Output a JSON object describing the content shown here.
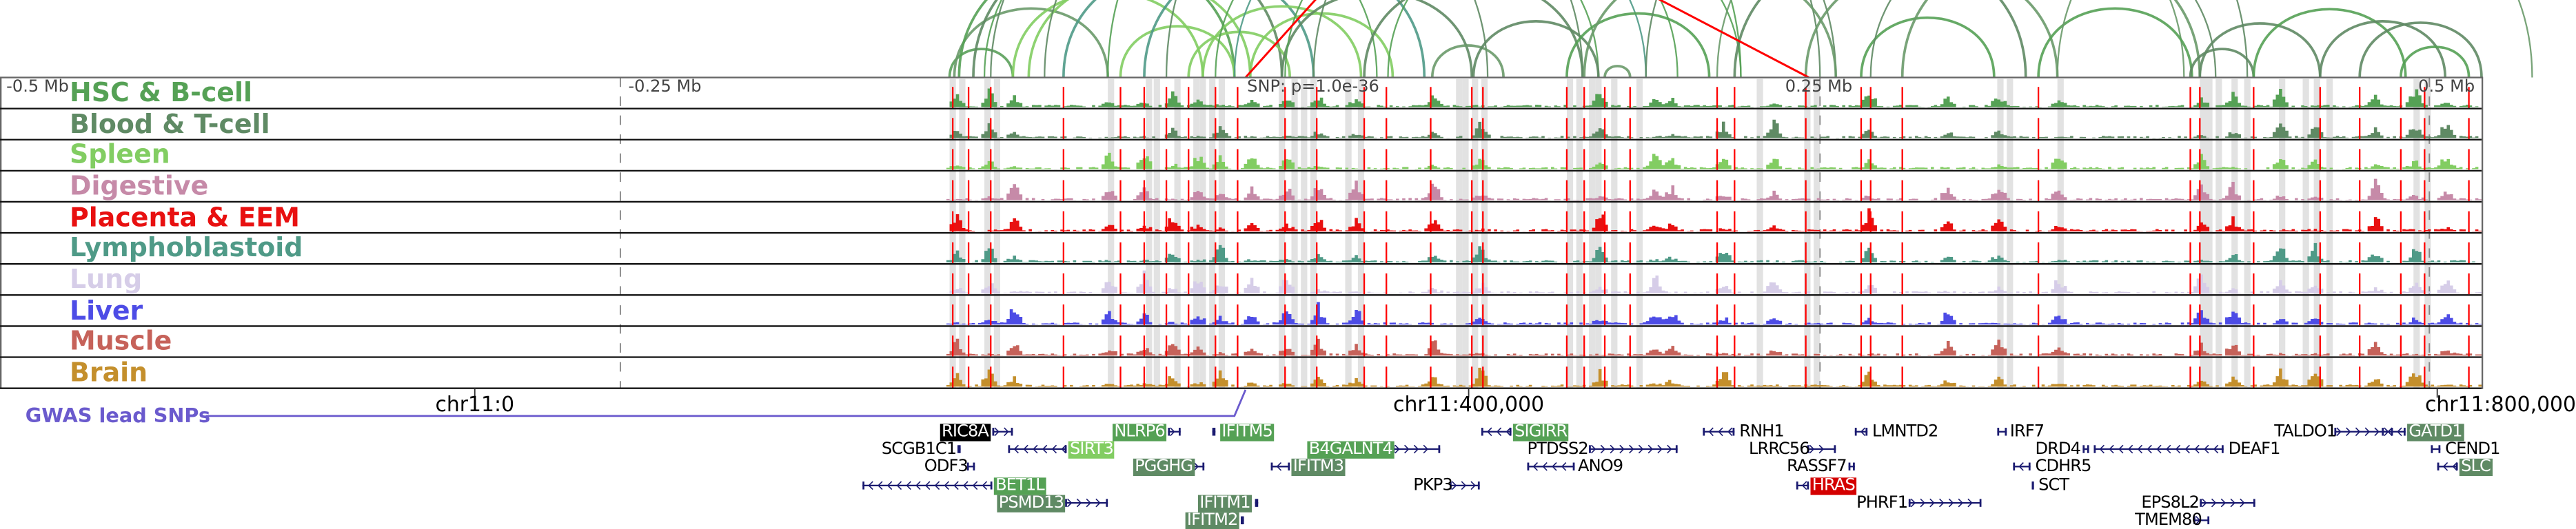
{
  "ruler": {
    "left": "-0.5 Mb",
    "left_mid": "-0.25 Mb",
    "right_mid": "0.25 Mb",
    "right": "0.5 Mb",
    "snp": "SNP: p=1.0e-36"
  },
  "tracks": [
    {
      "label": "HSC & B-cell",
      "color": "#55a155"
    },
    {
      "label": "Blood & T-cell",
      "color": "#5f8a64"
    },
    {
      "label": "Spleen",
      "color": "#82cd62"
    },
    {
      "label": "Digestive",
      "color": "#c68aa8"
    },
    {
      "label": "Placenta & EEM",
      "color": "#e81010"
    },
    {
      "label": "Lymphoblastoid",
      "color": "#4f9a87"
    },
    {
      "label": "Lung",
      "color": "#d6cde8"
    },
    {
      "label": "Liver",
      "color": "#4d4ce6"
    },
    {
      "label": "Muscle",
      "color": "#c6625a"
    },
    {
      "label": "Brain",
      "color": "#c48f2c"
    }
  ],
  "axis": {
    "ticks": [
      "chr11:0",
      "chr11:400,000",
      "chr11:800,000"
    ]
  },
  "gwas": {
    "label": "GWAS lead SNPs",
    "color": "#6a5acd"
  },
  "colors": {
    "snp_line": "#ff0000",
    "gene_glyph": "#1a1a70",
    "band": "#e2e2e2"
  },
  "genes": [
    {
      "name": "RIC8A",
      "box": "#000000"
    },
    {
      "name": "NLRP6",
      "box": "#55a155"
    },
    {
      "name": "IFITM5",
      "box": "#55a155"
    },
    {
      "name": "SIGIRR",
      "box": "#55a155"
    },
    {
      "name": "RNH1",
      "box": null
    },
    {
      "name": "LMNTD2",
      "box": null
    },
    {
      "name": "IRF7",
      "box": null
    },
    {
      "name": "TALDO1",
      "box": null
    },
    {
      "name": "GATD1",
      "box": "#5f8a64"
    },
    {
      "name": "SCGB1C1",
      "box": null
    },
    {
      "name": "SIRT3",
      "box": "#82cd62"
    },
    {
      "name": "B4GALNT4",
      "box": "#55a155"
    },
    {
      "name": "PTDSS2",
      "box": null
    },
    {
      "name": "LRRC56",
      "box": null
    },
    {
      "name": "DRD4",
      "box": null
    },
    {
      "name": "DEAF1",
      "box": null
    },
    {
      "name": "CEND1",
      "box": null
    },
    {
      "name": "ODF3",
      "box": null
    },
    {
      "name": "PGGHG",
      "box": "#5f8a64"
    },
    {
      "name": "IFITM3",
      "box": "#5f8a64"
    },
    {
      "name": "ANO9",
      "box": null
    },
    {
      "name": "RASSF7",
      "box": null
    },
    {
      "name": "CDHR5",
      "box": null
    },
    {
      "name": "SLC",
      "box": "#5f8a64"
    },
    {
      "name": "BET1L",
      "box": "#55a155"
    },
    {
      "name": "PKP3",
      "box": null
    },
    {
      "name": "HRAS",
      "box": "#d40000"
    },
    {
      "name": "SCT",
      "box": null
    },
    {
      "name": "PSMD13",
      "box": "#5f8a64"
    },
    {
      "name": "IFITM1",
      "box": "#5f8a64"
    },
    {
      "name": "PHRF1",
      "box": null
    },
    {
      "name": "EPS8L2",
      "box": null
    },
    {
      "name": "IFITM2",
      "box": "#5f8a64"
    },
    {
      "name": "TMEM80",
      "box": null
    }
  ]
}
